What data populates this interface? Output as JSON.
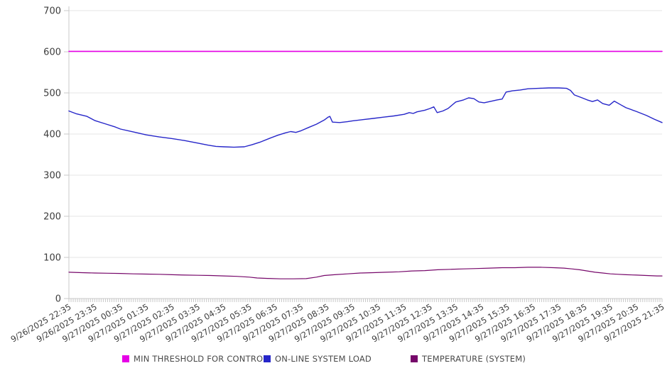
{
  "chart_data": {
    "type": "line",
    "title": "",
    "xlabel": "",
    "ylabel": "",
    "ylim": [
      0,
      700
    ],
    "y_ticks": [
      0,
      100,
      200,
      300,
      400,
      500,
      600,
      700
    ],
    "grid": true,
    "legend_position": "bottom",
    "minor_ticks_per_hour": 12,
    "x_labels": [
      "9/26/2025 22:35",
      "9/26/2025 23:35",
      "9/27/2025 00:35",
      "9/27/2025 01:35",
      "9/27/2025 02:35",
      "9/27/2025 03:35",
      "9/27/2025 04:35",
      "9/27/2025 05:35",
      "9/27/2025 06:35",
      "9/27/2025 07:35",
      "9/27/2025 08:35",
      "9/27/2025 09:35",
      "9/27/2025 10:35",
      "9/27/2025 11:35",
      "9/27/2025 12:35",
      "9/27/2025 13:35",
      "9/27/2025 14:35",
      "9/27/2025 15:35",
      "9/27/2025 16:35",
      "9/27/2025 17:35",
      "9/27/2025 18:35",
      "9/27/2025 19:35",
      "9/27/2025 20:35",
      "9/27/2025 21:35"
    ],
    "colors": {
      "grid": "#e6e6e6",
      "axis": "#c9c9c9",
      "tick": "#c9c9c9",
      "label": "#3c3c3c"
    },
    "series": [
      {
        "name": "MIN THRESHOLD FOR CONTROL",
        "color": "#e600e6",
        "width": 1.6,
        "points": [
          [
            0,
            601
          ],
          [
            23,
            601
          ]
        ]
      },
      {
        "name": "ON-LINE SYSTEM LOAD",
        "color": "#2626c9",
        "width": 1.4,
        "points": [
          [
            0,
            456
          ],
          [
            0.3,
            449
          ],
          [
            0.7,
            443
          ],
          [
            1,
            433
          ],
          [
            1.4,
            425
          ],
          [
            1.8,
            417
          ],
          [
            2,
            412
          ],
          [
            2.5,
            405
          ],
          [
            3,
            398
          ],
          [
            3.5,
            393
          ],
          [
            4,
            389
          ],
          [
            4.5,
            384
          ],
          [
            5,
            378
          ],
          [
            5.4,
            373
          ],
          [
            5.7,
            370
          ],
          [
            6,
            369
          ],
          [
            6.4,
            368
          ],
          [
            6.8,
            369
          ],
          [
            7.1,
            374
          ],
          [
            7.4,
            380
          ],
          [
            7.8,
            390
          ],
          [
            8.1,
            397
          ],
          [
            8.4,
            403
          ],
          [
            8.6,
            406
          ],
          [
            8.8,
            404
          ],
          [
            9,
            408
          ],
          [
            9.3,
            416
          ],
          [
            9.6,
            424
          ],
          [
            9.9,
            434
          ],
          [
            10.05,
            441
          ],
          [
            10.12,
            443
          ],
          [
            10.22,
            429
          ],
          [
            10.5,
            428
          ],
          [
            10.8,
            430
          ],
          [
            11,
            432
          ],
          [
            11.4,
            435
          ],
          [
            11.8,
            438
          ],
          [
            12.2,
            441
          ],
          [
            12.6,
            444
          ],
          [
            13,
            448
          ],
          [
            13.2,
            452
          ],
          [
            13.35,
            450
          ],
          [
            13.5,
            454
          ],
          [
            13.8,
            458
          ],
          [
            14,
            462
          ],
          [
            14.15,
            466
          ],
          [
            14.28,
            452
          ],
          [
            14.5,
            456
          ],
          [
            14.7,
            462
          ],
          [
            15,
            478
          ],
          [
            15.3,
            483
          ],
          [
            15.5,
            488
          ],
          [
            15.7,
            486
          ],
          [
            15.9,
            478
          ],
          [
            16.1,
            476
          ],
          [
            16.4,
            480
          ],
          [
            16.6,
            483
          ],
          [
            16.8,
            485
          ],
          [
            16.95,
            502
          ],
          [
            17.2,
            505
          ],
          [
            17.5,
            507
          ],
          [
            17.8,
            510
          ],
          [
            18.2,
            511
          ],
          [
            18.6,
            512
          ],
          [
            19,
            512
          ],
          [
            19.3,
            511
          ],
          [
            19.45,
            506
          ],
          [
            19.6,
            495
          ],
          [
            19.9,
            488
          ],
          [
            20.1,
            483
          ],
          [
            20.3,
            479
          ],
          [
            20.5,
            483
          ],
          [
            20.7,
            474
          ],
          [
            20.95,
            470
          ],
          [
            21.15,
            480
          ],
          [
            21.4,
            471
          ],
          [
            21.6,
            464
          ],
          [
            22,
            455
          ],
          [
            22.4,
            445
          ],
          [
            22.7,
            436
          ],
          [
            23,
            428
          ]
        ]
      },
      {
        "name": "TEMPERATURE (SYSTEM)",
        "color": "#76076a",
        "width": 1.2,
        "points": [
          [
            0,
            64
          ],
          [
            0.5,
            63
          ],
          [
            1,
            62
          ],
          [
            1.5,
            61.5
          ],
          [
            2,
            61
          ],
          [
            2.5,
            60
          ],
          [
            3,
            59.5
          ],
          [
            3.5,
            59
          ],
          [
            4,
            58
          ],
          [
            4.5,
            57
          ],
          [
            5,
            56.5
          ],
          [
            5.5,
            56
          ],
          [
            6,
            55
          ],
          [
            6.5,
            54
          ],
          [
            7,
            52
          ],
          [
            7.3,
            50
          ],
          [
            7.7,
            49
          ],
          [
            8.2,
            48
          ],
          [
            8.7,
            48
          ],
          [
            9.2,
            48.5
          ],
          [
            9.6,
            52
          ],
          [
            9.9,
            56
          ],
          [
            10.3,
            58
          ],
          [
            10.8,
            60
          ],
          [
            11.3,
            62
          ],
          [
            11.8,
            63
          ],
          [
            12.3,
            64
          ],
          [
            12.8,
            65
          ],
          [
            13.3,
            67
          ],
          [
            13.8,
            68
          ],
          [
            14.3,
            70
          ],
          [
            14.8,
            71
          ],
          [
            15.3,
            72
          ],
          [
            15.8,
            73
          ],
          [
            16.3,
            74
          ],
          [
            16.8,
            75
          ],
          [
            17.3,
            75
          ],
          [
            17.8,
            76
          ],
          [
            18.3,
            76
          ],
          [
            18.8,
            75
          ],
          [
            19.2,
            74
          ],
          [
            19.5,
            72
          ],
          [
            19.8,
            70
          ],
          [
            20.1,
            67
          ],
          [
            20.4,
            64
          ],
          [
            20.7,
            62
          ],
          [
            21,
            60
          ],
          [
            21.3,
            59
          ],
          [
            21.6,
            58
          ],
          [
            22,
            57
          ],
          [
            22.4,
            56
          ],
          [
            22.8,
            55
          ],
          [
            23,
            55
          ]
        ]
      }
    ],
    "legend_x_positions": [
      172,
      371,
      578
    ]
  }
}
